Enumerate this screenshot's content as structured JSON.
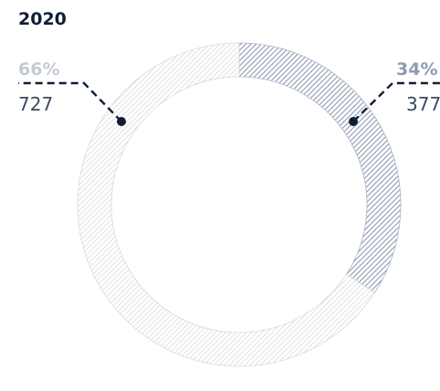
{
  "chart_data": {
    "type": "pie",
    "title": "2020",
    "donut": true,
    "slices": [
      {
        "percent_label": "34%",
        "count_label": "377",
        "value": 377,
        "color": "#8d9bb0",
        "pattern": "dense-diagonal-hatch"
      },
      {
        "percent_label": "66%",
        "count_label": "727",
        "value": 727,
        "color": "#c3cad4",
        "pattern": "light-diagonal-hatch"
      }
    ]
  }
}
